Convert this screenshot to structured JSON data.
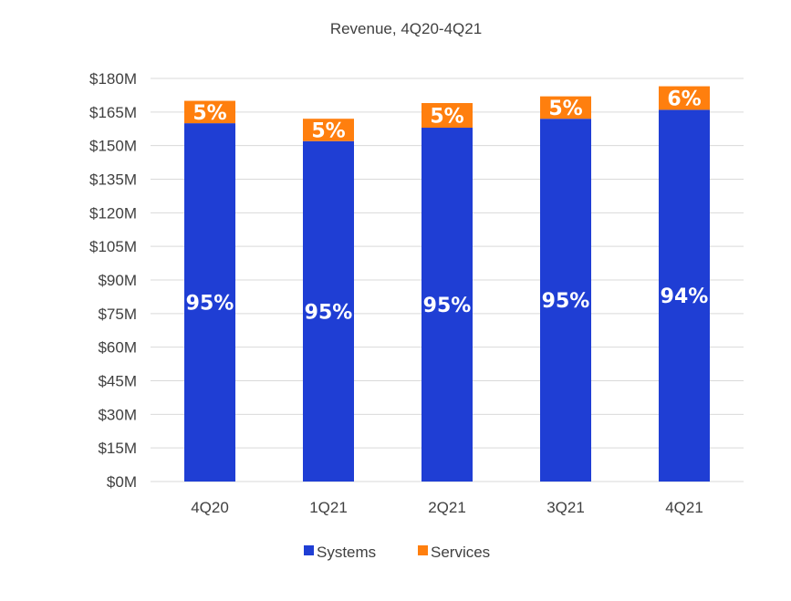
{
  "chart_data": {
    "type": "bar",
    "stacked": true,
    "title": "Revenue, 4Q20-4Q21",
    "categories": [
      "4Q20",
      "1Q21",
      "2Q21",
      "3Q21",
      "4Q21"
    ],
    "series": [
      {
        "name": "Systems",
        "color": "#1f3ed4",
        "values": [
          160,
          152,
          158,
          162,
          166
        ],
        "labels": [
          "95%",
          "95%",
          "95%",
          "95%",
          "94%"
        ]
      },
      {
        "name": "Services",
        "color": "#ff7f0e",
        "values": [
          10,
          10,
          11,
          10,
          10.5
        ],
        "labels": [
          "5%",
          "5%",
          "5%",
          "5%",
          "6%"
        ]
      }
    ],
    "ylim": [
      0,
      180
    ],
    "yticks": [
      "$0M",
      "$15M",
      "$30M",
      "$45M",
      "$60M",
      "$75M",
      "$90M",
      "$105M",
      "$120M",
      "$135M",
      "$150M",
      "$165M",
      "$180M"
    ],
    "grid": true,
    "legend_position": "bottom"
  }
}
